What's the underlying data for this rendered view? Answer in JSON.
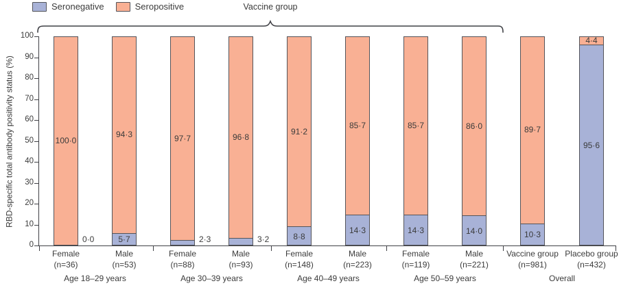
{
  "legend": [
    {
      "label": "Seronegative",
      "color": "#a8b2d7"
    },
    {
      "label": "Seropositive",
      "color": "#f9b094"
    }
  ],
  "brace_label": "Vaccine group",
  "chart_data": {
    "type": "bar",
    "stacked": true,
    "ylabel": "RBD-specific total antibody positivity status (%)",
    "ylim": [
      0,
      100
    ],
    "yticks": [
      0,
      10,
      20,
      30,
      40,
      50,
      60,
      70,
      80,
      90,
      100
    ],
    "legend_position": "top-left",
    "series_names": [
      "Seronegative",
      "Seropositive"
    ],
    "colors": {
      "seronegative": "#a8b2d7",
      "seropositive": "#f9b094",
      "border": "#53545a",
      "text": "#3b3b3b"
    },
    "groups": [
      {
        "label": "Age 18–29 years",
        "bars": [
          {
            "category": "Female",
            "n": "(n=36)",
            "seronegative": 0.0,
            "seropositive": 100.0,
            "seronegative_label": "0·0",
            "seropositive_label": "100·0"
          },
          {
            "category": "Male",
            "n": "(n=53)",
            "seronegative": 5.7,
            "seropositive": 94.3,
            "seronegative_label": "5·7",
            "seropositive_label": "94·3"
          }
        ]
      },
      {
        "label": "Age 30–39 years",
        "bars": [
          {
            "category": "Female",
            "n": "(n=88)",
            "seronegative": 2.3,
            "seropositive": 97.7,
            "seronegative_label": "2·3",
            "seropositive_label": "97·7"
          },
          {
            "category": "Male",
            "n": "(n=93)",
            "seronegative": 3.2,
            "seropositive": 96.8,
            "seronegative_label": "3·2",
            "seropositive_label": "96·8"
          }
        ]
      },
      {
        "label": "Age 40–49 years",
        "bars": [
          {
            "category": "Female",
            "n": "(n=148)",
            "seronegative": 8.8,
            "seropositive": 91.2,
            "seronegative_label": "8·8",
            "seropositive_label": "91·2"
          },
          {
            "category": "Male",
            "n": "(n=223)",
            "seronegative": 14.3,
            "seropositive": 85.7,
            "seronegative_label": "14·3",
            "seropositive_label": "85·7"
          }
        ]
      },
      {
        "label": "Age 50–59 years",
        "bars": [
          {
            "category": "Female",
            "n": "(n=119)",
            "seronegative": 14.3,
            "seropositive": 85.7,
            "seronegative_label": "14·3",
            "seropositive_label": "85·7"
          },
          {
            "category": "Male",
            "n": "(n=221)",
            "seronegative": 14.0,
            "seropositive": 86.0,
            "seronegative_label": "14·0",
            "seropositive_label": "86·0"
          }
        ]
      },
      {
        "label": "Overall",
        "bars": [
          {
            "category": "Vaccine group",
            "n": "(n=981)",
            "seronegative": 10.3,
            "seropositive": 89.7,
            "seronegative_label": "10·3",
            "seropositive_label": "89·7"
          },
          {
            "category": "Placebo group",
            "n": "(n=432)",
            "seronegative": 95.6,
            "seropositive": 4.4,
            "seronegative_label": "95·6",
            "seropositive_label": "4·4"
          }
        ]
      }
    ]
  }
}
